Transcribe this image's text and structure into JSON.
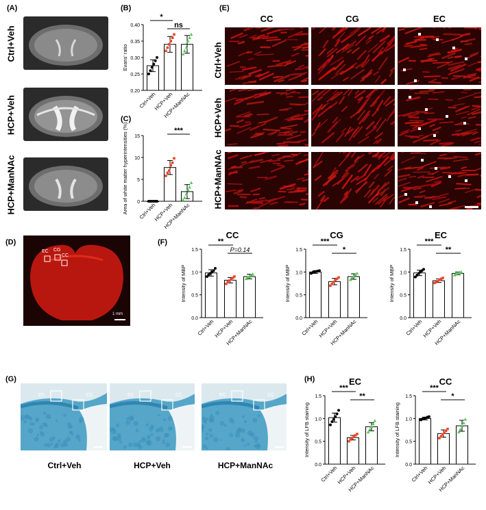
{
  "panels": {
    "A": "(A)",
    "B": "(B)",
    "C": "(C)",
    "D": "(D)",
    "E": "(E)",
    "F": "(F)",
    "G": "(G)",
    "H": "(H)"
  },
  "groups": [
    "Ctrl+Veh",
    "HCP+Veh",
    "HCP+ManNAc"
  ],
  "panel_e": {
    "columns": [
      "CC",
      "CG",
      "EC"
    ]
  },
  "panel_d": {
    "regions": [
      "EC",
      "CG",
      "CC"
    ],
    "scalebar": "1 mm"
  },
  "panel_g": {
    "region_labels": [
      "EC",
      "CC"
    ]
  },
  "colors": {
    "ctrl": "#000000",
    "hcp": "#e8462a",
    "mannac": "#5ac85a",
    "mbp": "#c41a12",
    "lfb": "#55a6c8"
  },
  "chart_data": [
    {
      "id": "B",
      "type": "bar",
      "ylabel": "Evans' ratio",
      "ylim": [
        0.2,
        0.4
      ],
      "yticks": [
        "0.20",
        "0.25",
        "0.30",
        "0.35",
        "0.40"
      ],
      "categories": [
        "Ctrl+Veh",
        "HCP+Veh",
        "HCP+ManNAc"
      ],
      "values": [
        0.275,
        0.34,
        0.34
      ],
      "err": [
        0.018,
        0.024,
        0.027
      ],
      "points": [
        [
          0.25,
          0.26,
          0.27,
          0.28,
          0.29,
          0.3
        ],
        [
          0.32,
          0.33,
          0.34,
          0.35,
          0.36,
          0.37
        ],
        [
          0.31,
          0.32,
          0.33,
          0.35,
          0.36,
          0.37
        ]
      ],
      "sig": [
        {
          "from": 0,
          "to": 1,
          "label": "*"
        },
        {
          "from": 1,
          "to": 2,
          "label": "ns"
        }
      ]
    },
    {
      "id": "C",
      "type": "bar",
      "ylabel": "Area of white matter hyperintensities (%)",
      "ylim": [
        0,
        15
      ],
      "yticks": [
        "0",
        "5",
        "10",
        "15"
      ],
      "categories": [
        "Ctrl+Veh",
        "HCP+Veh",
        "HCP+ManNAc"
      ],
      "values": [
        0,
        7.7,
        2.2
      ],
      "err": [
        0,
        1.6,
        1.6
      ],
      "points": [
        [
          0,
          0,
          0,
          0,
          0,
          0
        ],
        [
          5.8,
          6.5,
          7.0,
          8.2,
          8.8,
          9.8
        ],
        [
          0.3,
          0.8,
          1.6,
          2.6,
          3.2,
          4.2
        ]
      ],
      "sig": [
        {
          "from": 1,
          "to": 2,
          "label": "***"
        }
      ]
    },
    {
      "id": "F1",
      "type": "bar",
      "title": "CC",
      "ylabel": "Intensity of MBP",
      "ylim": [
        0,
        1.5
      ],
      "yticks": [
        "0.0",
        "0.5",
        "1.0",
        "1.5"
      ],
      "categories": [
        "Ctrl+Veh",
        "HCP+Veh",
        "HCP+ManNAc"
      ],
      "values": [
        0.98,
        0.82,
        0.9
      ],
      "err": [
        0.07,
        0.06,
        0.05
      ],
      "points": [
        [
          0.9,
          0.94,
          0.97,
          1.0,
          1.03,
          1.08
        ],
        [
          0.74,
          0.78,
          0.81,
          0.84,
          0.87,
          0.9
        ],
        [
          0.85,
          0.88,
          0.9,
          0.93,
          0.95
        ]
      ],
      "sig": [
        {
          "from": 0,
          "to": 1,
          "label": "**"
        },
        {
          "from": 1,
          "to": 2,
          "label": "P=0.14"
        }
      ]
    },
    {
      "id": "F2",
      "type": "bar",
      "title": "CG",
      "ylabel": "Intensity of MBP",
      "ylim": [
        0,
        1.5
      ],
      "yticks": [
        "0.0",
        "0.5",
        "1.0",
        "1.5"
      ],
      "categories": [
        "Ctrl+Veh",
        "HCP+Veh",
        "HCP+ManNAc"
      ],
      "values": [
        1.0,
        0.79,
        0.9
      ],
      "err": [
        0.03,
        0.07,
        0.06
      ],
      "points": [
        [
          0.97,
          0.99,
          1.0,
          1.01,
          1.02,
          1.03
        ],
        [
          0.7,
          0.74,
          0.78,
          0.82,
          0.85,
          0.88
        ],
        [
          0.83,
          0.87,
          0.9,
          0.94,
          0.97
        ]
      ],
      "sig": [
        {
          "from": 0,
          "to": 1,
          "label": "***"
        },
        {
          "from": 1,
          "to": 2,
          "label": "*"
        }
      ]
    },
    {
      "id": "F3",
      "type": "bar",
      "title": "EC",
      "ylabel": "Intensity of MBP",
      "ylim": [
        0,
        1.5
      ],
      "yticks": [
        "0.0",
        "0.5",
        "1.0",
        "1.5"
      ],
      "categories": [
        "Ctrl+Veh",
        "HCP+Veh",
        "HCP+ManNAc"
      ],
      "values": [
        0.98,
        0.81,
        0.97
      ],
      "err": [
        0.06,
        0.04,
        0.03
      ],
      "points": [
        [
          0.89,
          0.93,
          0.97,
          1.0,
          1.03,
          1.06
        ],
        [
          0.76,
          0.78,
          0.8,
          0.83,
          0.85,
          0.87
        ],
        [
          0.93,
          0.95,
          0.97,
          0.99,
          1.0
        ]
      ],
      "sig": [
        {
          "from": 0,
          "to": 1,
          "label": "***"
        },
        {
          "from": 1,
          "to": 2,
          "label": "**"
        }
      ]
    },
    {
      "id": "H1",
      "type": "bar",
      "title": "EC",
      "ylabel": "Intensity of LFB staining",
      "ylim": [
        0,
        1.5
      ],
      "yticks": [
        "0.0",
        "0.5",
        "1.0",
        "1.5"
      ],
      "categories": [
        "Ctrl+Veh",
        "HCP+Veh",
        "HCP+ManNAc"
      ],
      "values": [
        1.02,
        0.58,
        0.82
      ],
      "err": [
        0.1,
        0.05,
        0.09
      ],
      "points": [
        [
          0.86,
          0.93,
          0.98,
          1.04,
          1.1,
          1.18
        ],
        [
          0.5,
          0.54,
          0.57,
          0.6,
          0.63,
          0.66
        ],
        [
          0.7,
          0.76,
          0.82,
          0.88,
          0.95
        ]
      ],
      "sig": [
        {
          "from": 0,
          "to": 1,
          "label": "***"
        },
        {
          "from": 1,
          "to": 2,
          "label": "**"
        }
      ]
    },
    {
      "id": "H2",
      "type": "bar",
      "title": "CC",
      "ylabel": "Intensity of LFB staining",
      "ylim": [
        0,
        1.5
      ],
      "yticks": [
        "0.0",
        "0.5",
        "1.0",
        "1.5"
      ],
      "categories": [
        "Ctrl+Veh",
        "HCP+Veh",
        "HCP+ManNAc"
      ],
      "values": [
        1.0,
        0.67,
        0.84
      ],
      "err": [
        0.03,
        0.08,
        0.12
      ],
      "points": [
        [
          0.97,
          0.99,
          1.0,
          1.01,
          1.03,
          1.04
        ],
        [
          0.57,
          0.61,
          0.65,
          0.69,
          0.73,
          0.77
        ],
        [
          0.7,
          0.76,
          0.84,
          0.9,
          0.98
        ]
      ],
      "sig": [
        {
          "from": 0,
          "to": 1,
          "label": "***"
        },
        {
          "from": 1,
          "to": 2,
          "label": "*"
        }
      ]
    }
  ]
}
